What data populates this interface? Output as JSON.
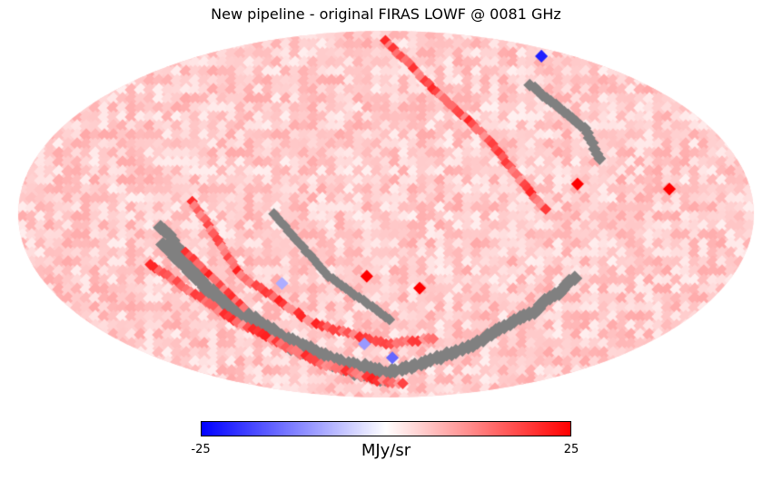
{
  "chart_data": {
    "type": "heatmap",
    "projection": "mollweide",
    "title": "New pipeline - original FIRAS LOWF @ 0081 GHz",
    "colorbar": {
      "min": -25,
      "max": 25,
      "min_label": "-25",
      "max_label": "25",
      "unit_label": "MJy/sr",
      "colormap": "bwr",
      "colors": {
        "low": "#0000ff",
        "mid": "#ffffff",
        "high": "#ff0000",
        "bad": "#808080"
      }
    },
    "background_level": 5,
    "features": [
      {
        "kind": "masked_band",
        "points_lonlat": [
          [
            110,
            -5
          ],
          [
            95,
            -30
          ],
          [
            70,
            -50
          ],
          [
            40,
            -63
          ],
          [
            0,
            -70
          ],
          [
            -30,
            -66
          ],
          [
            -60,
            -55
          ],
          [
            -85,
            -40
          ],
          [
            -100,
            -25
          ]
        ]
      },
      {
        "kind": "masked_band",
        "points_lonlat": [
          [
            110,
            -12
          ],
          [
            93,
            -38
          ],
          [
            65,
            -58
          ],
          [
            30,
            -70
          ],
          [
            -5,
            -75
          ]
        ]
      },
      {
        "kind": "masked_arc",
        "points_lonlat": [
          [
            -100,
            55
          ],
          [
            -110,
            35
          ],
          [
            -110,
            20
          ]
        ]
      },
      {
        "kind": "masked_streak",
        "points_lonlat": [
          [
            55,
            0
          ],
          [
            30,
            -25
          ],
          [
            -5,
            -45
          ]
        ]
      },
      {
        "kind": "positive_band",
        "points_lonlat": [
          [
            0,
            80
          ],
          [
            -30,
            55
          ],
          [
            -55,
            30
          ],
          [
            -70,
            10
          ],
          [
            -80,
            0
          ]
        ]
      },
      {
        "kind": "positive_band",
        "points_lonlat": [
          [
            95,
            5
          ],
          [
            75,
            -25
          ],
          [
            45,
            -45
          ],
          [
            0,
            -55
          ],
          [
            -35,
            -52
          ]
        ]
      },
      {
        "kind": "positive_band",
        "points_lonlat": [
          [
            120,
            -20
          ],
          [
            90,
            -45
          ],
          [
            55,
            -65
          ],
          [
            10,
            -75
          ],
          [
            -30,
            -78
          ]
        ]
      },
      {
        "kind": "positive_arc",
        "points_lonlat": [
          [
            100,
            -15
          ],
          [
            80,
            -40
          ]
        ]
      },
      {
        "kind": "negative_spots",
        "values": [
          -22,
          -10,
          -15,
          -8
        ]
      }
    ],
    "point_sources": [
      {
        "lon": -140,
        "lat": 10,
        "value": 25
      },
      {
        "lon": -95,
        "lat": 12,
        "value": 25
      },
      {
        "lon": -18,
        "lat": -30,
        "value": 25
      },
      {
        "lon": 10,
        "lat": -25,
        "value": 25
      }
    ]
  }
}
